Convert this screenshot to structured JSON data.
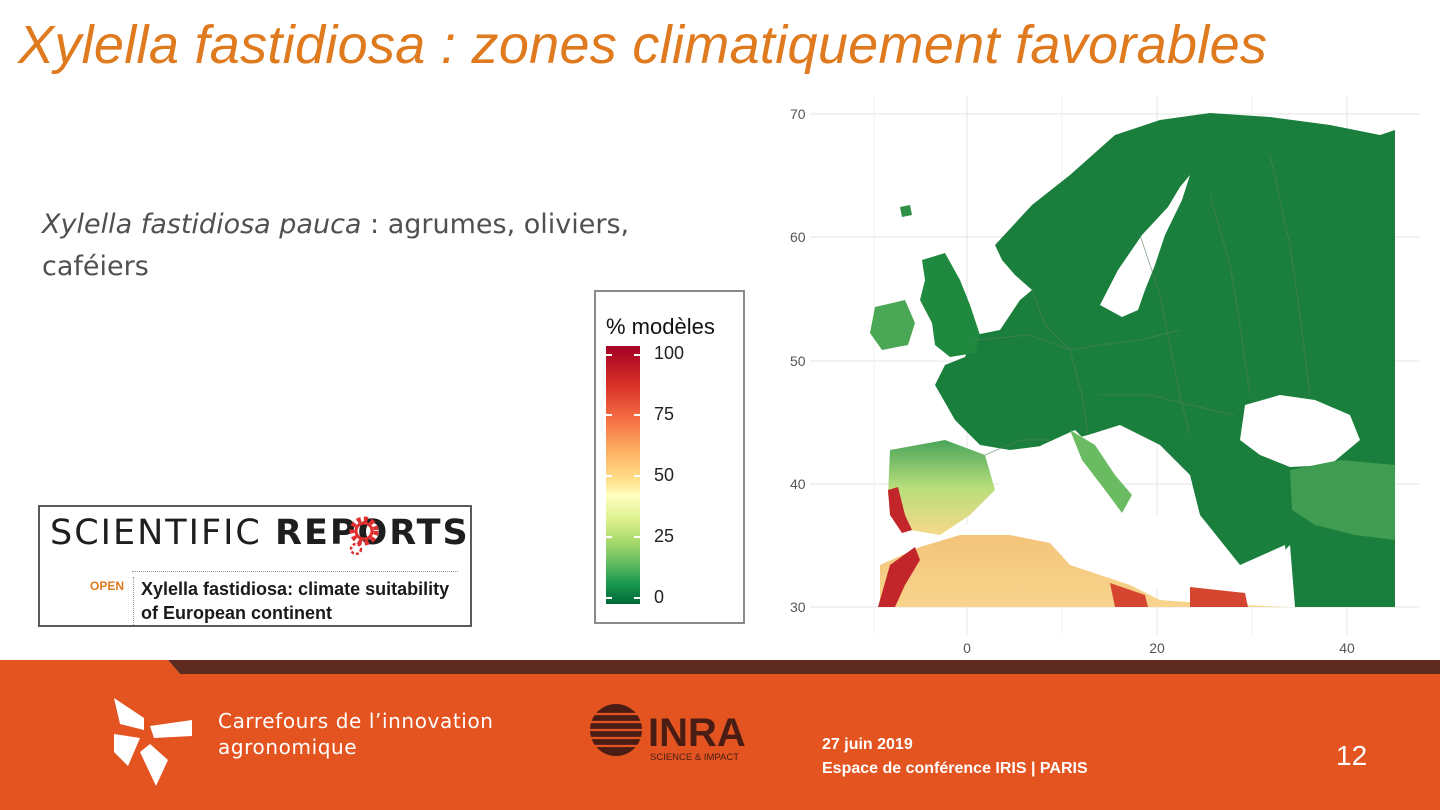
{
  "slide": {
    "title": "Xylella fastidiosa : zones climatiquement favorables",
    "body_italic": "Xylella fastidiosa pauca",
    "body_rest": " : agrumes, oliviers, caféiers",
    "page_number": "12"
  },
  "reference": {
    "journal_thin": "SCIENTIFIC ",
    "journal_bold": "REPORTS",
    "open_label": "OPEN",
    "article_title": "Xylella fastidiosa: climate suitability of European continent",
    "logo_accent_color": "#e03030"
  },
  "legend": {
    "title": "% modèles",
    "ticks": [
      "100",
      "75",
      "50",
      "25",
      "0"
    ],
    "scale_colors": [
      "#a50026",
      "#f46d43",
      "#fee08b",
      "#a6d96a",
      "#006837"
    ]
  },
  "map": {
    "y_ticks": [
      "70",
      "60",
      "50",
      "40",
      "30"
    ],
    "x_ticks": [
      "0",
      "20",
      "40"
    ],
    "y_range": [
      30,
      70
    ],
    "x_range": [
      -10,
      45
    ],
    "land_color": "#1a7f3c",
    "water_color": "#ffffff"
  },
  "footer": {
    "brand_line1": "Carrefours de l’innovation",
    "brand_line2": "agronomique",
    "inra_name": "INRA",
    "inra_tagline": "SCIENCE & IMPACT",
    "date": "27 juin 2019",
    "venue": "Espace de conférence IRIS | PARIS",
    "bg_color": "#e35420",
    "stripe_color": "#5c2a1e"
  }
}
